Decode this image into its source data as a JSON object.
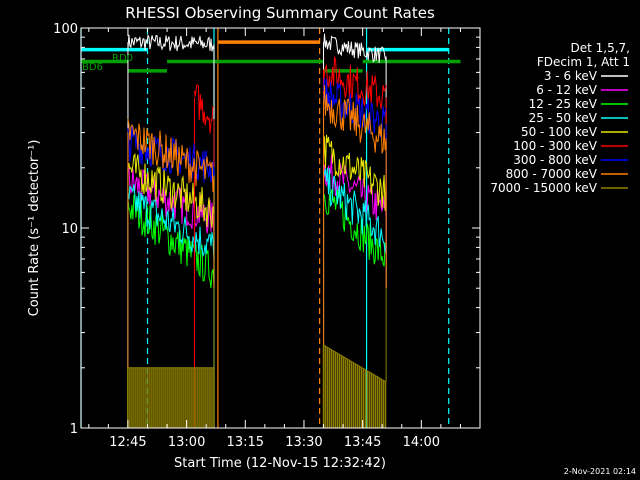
{
  "chart_data": {
    "type": "line",
    "title": "RHESSI Observing Summary Count Rates",
    "xlabel": "Start Time (12-Nov-15 12:32:42)",
    "ylabel": "Count Rate (s⁻¹ detector⁻¹)",
    "y_scale": "log",
    "ylim": [
      1,
      100
    ],
    "yticks": [
      {
        "value": 1,
        "label": "1"
      },
      {
        "value": 10,
        "label": "10"
      },
      {
        "value": 100,
        "label": "100"
      }
    ],
    "xlim": [
      "12:33",
      "14:15"
    ],
    "xticks": [
      "12:45",
      "13:00",
      "13:15",
      "13:30",
      "13:45",
      "14:00"
    ],
    "legend_position": "right",
    "legend_header": [
      "Det 1,5,7,",
      "FDecim 1, Att 1"
    ],
    "footer_timestamp": "2-Nov-2021 02:14",
    "flags": [
      {
        "label": "RD0",
        "color": "#00a000"
      },
      {
        "label": "BD6",
        "color": "#00a000"
      }
    ],
    "series": [
      {
        "name": "3 - 6 keV",
        "color": "#ffffff",
        "segments": [
          {
            "t0": "12:45",
            "t1": "13:07",
            "y0": 85,
            "y1": 83
          },
          {
            "t0": "13:35",
            "t1": "13:51",
            "y0": 85,
            "y1": 72
          }
        ]
      },
      {
        "name": "6 - 12 keV",
        "color": "#ff00ff",
        "segments": [
          {
            "t0": "12:45",
            "t1": "13:07",
            "y0": 17,
            "y1": 11
          },
          {
            "t0": "13:35",
            "t1": "13:51",
            "y0": 20,
            "y1": 12
          }
        ]
      },
      {
        "name": "12 - 25 keV",
        "color": "#00ff00",
        "segments": [
          {
            "t0": "12:45",
            "t1": "13:07",
            "y0": 13,
            "y1": 6
          },
          {
            "t0": "13:35",
            "t1": "13:51",
            "y0": 15,
            "y1": 7
          }
        ]
      },
      {
        "name": "25 - 50 keV",
        "color": "#00ffff",
        "segments": [
          {
            "t0": "12:45",
            "t1": "13:07",
            "y0": 14,
            "y1": 8
          },
          {
            "t0": "13:35",
            "t1": "13:51",
            "y0": 17,
            "y1": 9
          }
        ]
      },
      {
        "name": "50 - 100 keV",
        "color": "#e8e800",
        "segments": [
          {
            "t0": "12:45",
            "t1": "13:07",
            "y0": 20,
            "y1": 12
          },
          {
            "t0": "13:35",
            "t1": "13:51",
            "y0": 25,
            "y1": 15
          }
        ]
      },
      {
        "name": "100 - 300 keV",
        "color": "#ff0000",
        "segments": [
          {
            "t0": "13:02",
            "t1": "13:07",
            "y0": 45,
            "y1": 35
          },
          {
            "t0": "13:35",
            "t1": "13:51",
            "y0": 62,
            "y1": 45
          }
        ]
      },
      {
        "name": "300 - 800 keV",
        "color": "#0000ff",
        "segments": [
          {
            "t0": "12:45",
            "t1": "13:07",
            "y0": 27,
            "y1": 20
          },
          {
            "t0": "13:35",
            "t1": "13:51",
            "y0": 47,
            "y1": 33
          }
        ]
      },
      {
        "name": "800 - 7000 keV",
        "color": "#ff8000",
        "segments": [
          {
            "t0": "12:45",
            "t1": "13:07",
            "y0": 30,
            "y1": 18
          },
          {
            "t0": "13:35",
            "t1": "13:51",
            "y0": 43,
            "y1": 27
          }
        ]
      },
      {
        "name": "7000 - 15000 keV",
        "color": "#908000",
        "segments": [
          {
            "t0": "12:45",
            "t1": "13:07",
            "y0": 2,
            "y1": 2
          },
          {
            "t0": "13:35",
            "t1": "13:51",
            "y0": 2.6,
            "y1": 1.7
          }
        ]
      }
    ],
    "state_bars": [
      {
        "color": "#00ffff",
        "t0": "12:33",
        "t1": "12:50",
        "y": 78
      },
      {
        "color": "#00ffff",
        "t0": "13:46",
        "t1": "14:07",
        "y": 78
      },
      {
        "color": "#ff8000",
        "t0": "13:08",
        "t1": "13:34",
        "y": 85
      },
      {
        "color": "#00a000",
        "t0": "12:33",
        "t1": "12:45",
        "y": 68
      },
      {
        "color": "#00a000",
        "t0": "12:45",
        "t1": "12:55",
        "y": 61
      },
      {
        "color": "#00a000",
        "t0": "12:55",
        "t1": "13:35",
        "y": 68
      },
      {
        "color": "#00a000",
        "t0": "13:35",
        "t1": "13:45",
        "y": 61
      },
      {
        "color": "#00a000",
        "t0": "13:45",
        "t1": "14:10",
        "y": 68
      }
    ],
    "vlines": [
      {
        "t": "12:33",
        "color": "#00ffff",
        "style": "solid"
      },
      {
        "t": "12:50",
        "color": "#00ffff",
        "style": "dashed"
      },
      {
        "t": "13:07",
        "color": "#00ffff",
        "style": "solid"
      },
      {
        "t": "13:08",
        "color": "#ff8000",
        "style": "solid"
      },
      {
        "t": "13:34",
        "color": "#ff8000",
        "style": "dashed"
      },
      {
        "t": "13:46",
        "color": "#00ffff",
        "style": "solid"
      },
      {
        "t": "14:07",
        "color": "#00ffff",
        "style": "dashed"
      }
    ]
  }
}
